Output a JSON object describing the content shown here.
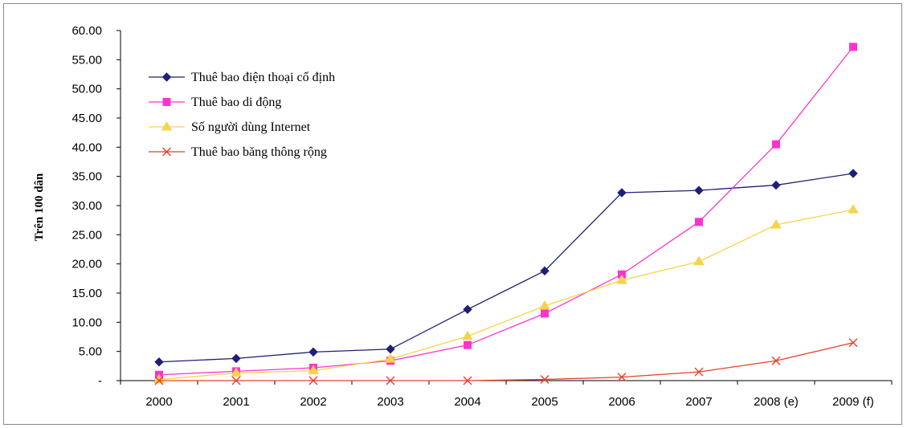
{
  "chart_data": {
    "type": "line",
    "categories": [
      "2000",
      "2001",
      "2002",
      "2003",
      "2004",
      "2005",
      "2006",
      "2007",
      "2008 (e)",
      "2009 (f)"
    ],
    "ylabel": "Trên 100 dân",
    "ylim": [
      0,
      60
    ],
    "yticks": [
      "-",
      "5.00",
      "10.00",
      "15.00",
      "20.00",
      "25.00",
      "30.00",
      "35.00",
      "40.00",
      "45.00",
      "50.00",
      "55.00",
      "60.00"
    ],
    "grid": false,
    "legend_position": "top-left",
    "series": [
      {
        "name": "Thuê bao điện thoại cố định",
        "color": "#1f1f7a",
        "marker": "diamond",
        "values": [
          3.2,
          3.8,
          4.9,
          5.4,
          12.2,
          18.8,
          32.2,
          32.6,
          33.5,
          35.5
        ]
      },
      {
        "name": "Thuê bao di động",
        "color": "#ff33cc",
        "marker": "square",
        "values": [
          1.0,
          1.6,
          2.2,
          3.4,
          6.1,
          11.5,
          18.2,
          27.2,
          40.5,
          57.2
        ]
      },
      {
        "name": "Số người dùng Internet",
        "color": "#f5d44a",
        "marker": "triangle",
        "values": [
          0.2,
          1.3,
          1.7,
          3.7,
          7.6,
          12.8,
          17.2,
          20.4,
          26.7,
          29.3
        ]
      },
      {
        "name": "Thuê bao băng thông rộng",
        "color": "#e8402a",
        "marker": "x",
        "values": [
          0.0,
          0.0,
          0.0,
          0.0,
          0.0,
          0.2,
          0.6,
          1.5,
          3.4,
          6.5
        ]
      }
    ]
  }
}
